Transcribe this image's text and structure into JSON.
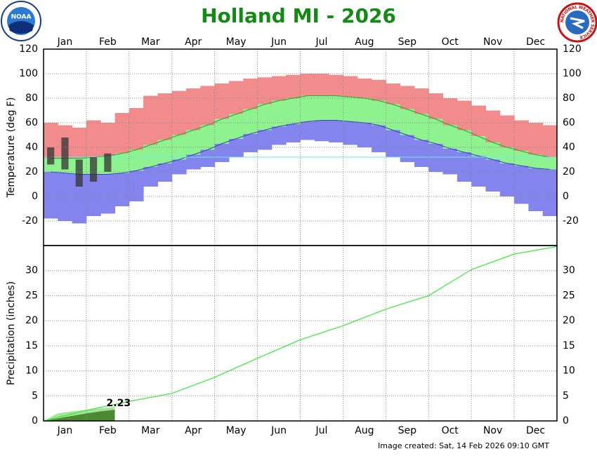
{
  "chart_data": [
    {
      "type": "temperature-range",
      "title": "Holland MI - 2026",
      "y_label": "Temperature (deg F)",
      "categories": [
        "Jan",
        "Feb",
        "Mar",
        "Apr",
        "May",
        "Jun",
        "Jul",
        "Aug",
        "Sep",
        "Oct",
        "Nov",
        "Dec"
      ],
      "ylim": [
        -40,
        120
      ],
      "yticks": [
        -20,
        0,
        20,
        40,
        60,
        80,
        100,
        120
      ],
      "grid": true,
      "freezing_line": {
        "value": 32,
        "color": "#66eeee"
      },
      "record_high": {
        "color": "#f28b8b",
        "values": [
          60,
          58,
          56,
          62,
          60,
          68,
          72,
          82,
          84,
          86,
          88,
          90,
          92,
          94,
          96,
          97,
          98,
          99,
          100,
          100,
          99,
          98,
          96,
          95,
          92,
          90,
          88,
          84,
          80,
          78,
          74,
          70,
          66,
          62,
          60,
          58
        ]
      },
      "normal_high": {
        "color": "#8ef28e",
        "line_color": "#22aa22",
        "values": [
          31,
          31,
          31,
          32,
          33,
          35,
          38,
          42,
          46,
          50,
          54,
          58,
          63,
          67,
          71,
          75,
          78,
          80,
          82,
          82,
          82,
          81,
          80,
          78,
          75,
          71,
          67,
          63,
          58,
          54,
          49,
          44,
          40,
          37,
          34,
          32
        ]
      },
      "normal_low": {
        "line_color": "#3344bb",
        "values": [
          20,
          19,
          18,
          18,
          18,
          19,
          21,
          24,
          27,
          30,
          34,
          38,
          43,
          47,
          51,
          54,
          57,
          59,
          61,
          62,
          62,
          61,
          60,
          58,
          54,
          50,
          46,
          43,
          39,
          36,
          33,
          30,
          27,
          25,
          23,
          22
        ]
      },
      "record_low": {
        "color": "#8484ee",
        "values": [
          -18,
          -20,
          -22,
          -16,
          -14,
          -8,
          -4,
          8,
          12,
          18,
          22,
          24,
          28,
          32,
          36,
          38,
          42,
          44,
          46,
          45,
          44,
          42,
          40,
          36,
          32,
          28,
          24,
          20,
          18,
          12,
          8,
          4,
          0,
          -6,
          -12,
          -16
        ]
      },
      "observed_high": {
        "color": "#333333",
        "values": [
          40,
          48,
          30,
          32,
          35
        ]
      },
      "observed_low": {
        "values": [
          26,
          22,
          8,
          12,
          20
        ]
      }
    },
    {
      "type": "cumulative-precip",
      "y_label": "Precipitation (inches)",
      "ylim": [
        0,
        35
      ],
      "yticks": [
        0,
        5,
        10,
        15,
        20,
        25,
        30
      ],
      "grid": true,
      "normal": {
        "color": "#33ee33",
        "values": [
          0,
          2.1,
          3.9,
          5.5,
          8.7,
          12.5,
          16.2,
          19.0,
          22.3,
          25.0,
          30.2,
          33.3,
          34.8
        ]
      },
      "record": {
        "color": "#a6e39a",
        "values": [
          0,
          1.5,
          1.9,
          2.2,
          2.5,
          2.8
        ]
      },
      "observed": {
        "color": "#4b8a33",
        "values": [
          0,
          0.5,
          1.0,
          1.5,
          1.9,
          2.23
        ]
      }
    }
  ],
  "footer": "Image created: Sat, 14 Feb 2026 09:10 GMT",
  "logos": {
    "noaa": "NOAA",
    "nws": "NATIONAL WEATHER SERVICE"
  }
}
